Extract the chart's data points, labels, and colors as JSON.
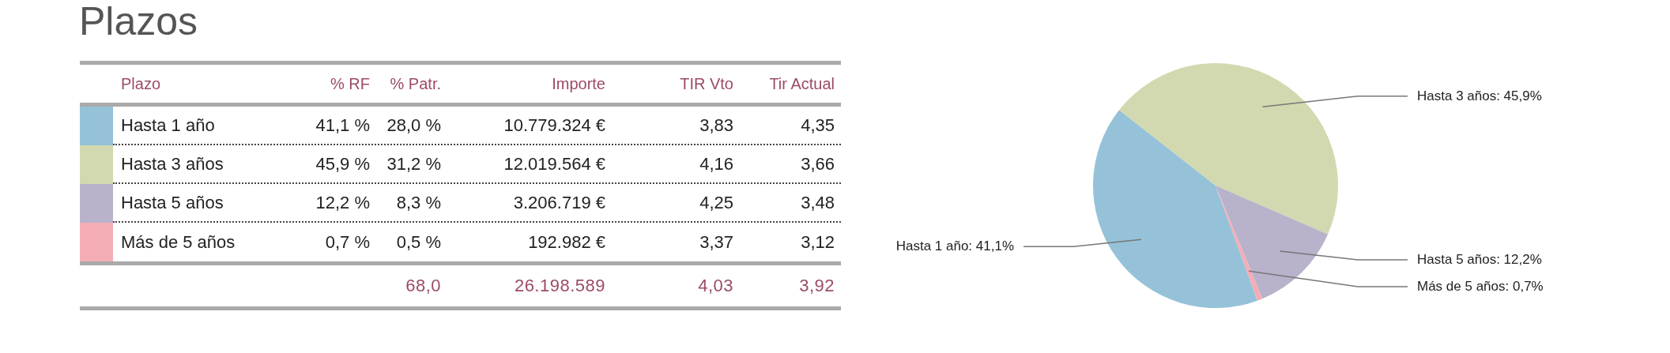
{
  "chart_data": [
    {
      "type": "other",
      "title": "Plazos",
      "ylabel": "Plazo",
      "categories": [
        "Hasta 1 año",
        "Hasta 3 años",
        "Hasta 5 años",
        "Más de 5 años"
      ],
      "colors": [
        "#95c2d8",
        "#d2d9b0",
        "#b8b2cb",
        "#f5adb5"
      ],
      "series": [
        {
          "name": "% RF",
          "values": [
            41.1,
            45.9,
            12.2,
            0.7
          ],
          "value_labels": [
            "41,1 %",
            "45,9 %",
            "12,2 %",
            "0,7 %"
          ]
        },
        {
          "name": "% Patr.",
          "values": [
            28.0,
            31.2,
            8.3,
            0.5
          ],
          "value_labels": [
            "28,0 %",
            "31,2 %",
            "8,3 %",
            "0,5 %"
          ]
        },
        {
          "name": "Importe",
          "values": [
            10779324,
            12019564,
            3206719,
            192982
          ],
          "value_labels": [
            "10.779.324 €",
            "12.019.564 €",
            "3.206.719 €",
            "192.982 €"
          ]
        },
        {
          "name": "TIR Vto",
          "values": [
            3.83,
            4.16,
            4.25,
            3.37
          ],
          "value_labels": [
            "3,83",
            "4,16",
            "4,25",
            "3,37"
          ]
        },
        {
          "name": "Tir Actual",
          "values": [
            4.35,
            3.66,
            3.48,
            3.12
          ],
          "value_labels": [
            "4,35",
            "3,66",
            "3,48",
            "3,12"
          ]
        }
      ],
      "totals": [
        null,
        "68,0",
        "26.198.589",
        "4,03",
        "3,92"
      ]
    },
    {
      "type": "pie",
      "categories": [
        "Hasta 1 año",
        "Hasta 3 años",
        "Hasta 5 años",
        "Más de 5 años"
      ],
      "values": [
        41.1,
        45.9,
        12.2,
        0.7
      ],
      "colors": [
        "#95c2d8",
        "#d2d9b0",
        "#b8b2cb",
        "#f5adb5"
      ],
      "value_labels": [
        "41,1%",
        "45,9%",
        "12,2%",
        "0,7%"
      ]
    }
  ]
}
